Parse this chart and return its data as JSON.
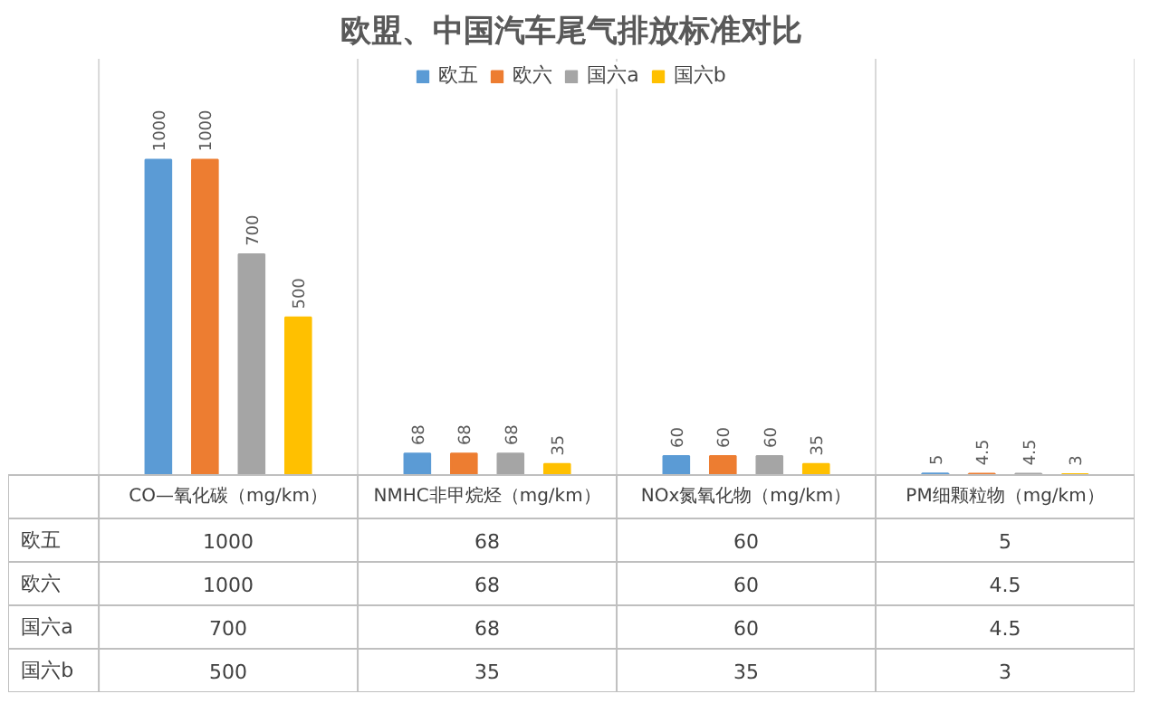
{
  "chart_data": {
    "type": "bar",
    "title": "欧盟、中国汽车尾气排放标准对比",
    "categories": [
      "CO—氧化碳（mg/km）",
      "NMHC非甲烷烃（mg/km）",
      "NOx氮氧化物（mg/km）",
      "PM细颗粒物（mg/km）"
    ],
    "series": [
      {
        "name": "欧五",
        "color": "#5b9bd5",
        "values": [
          1000,
          68,
          60,
          5
        ],
        "value_labels": [
          "1000",
          "68",
          "60",
          "5"
        ]
      },
      {
        "name": "欧六",
        "color": "#ed7d31",
        "values": [
          1000,
          68,
          60,
          4.5
        ],
        "value_labels": [
          "1000",
          "68",
          "60",
          "4.5"
        ]
      },
      {
        "name": "国六a",
        "color": "#a5a5a5",
        "values": [
          700,
          68,
          60,
          4.5
        ],
        "value_labels": [
          "700",
          "68",
          "60",
          "4.5"
        ]
      },
      {
        "name": "国六b",
        "color": "#ffc000",
        "values": [
          500,
          35,
          35,
          3
        ],
        "value_labels": [
          "500",
          "35",
          "35",
          "3"
        ]
      }
    ],
    "annotations": [
      "1000",
      "68",
      "60",
      "5",
      "1000",
      "68",
      "60",
      "4.5",
      "700",
      "68",
      "60",
      "4.5",
      "500",
      "35",
      "35",
      "3"
    ],
    "legend": "top",
    "grid": false
  }
}
